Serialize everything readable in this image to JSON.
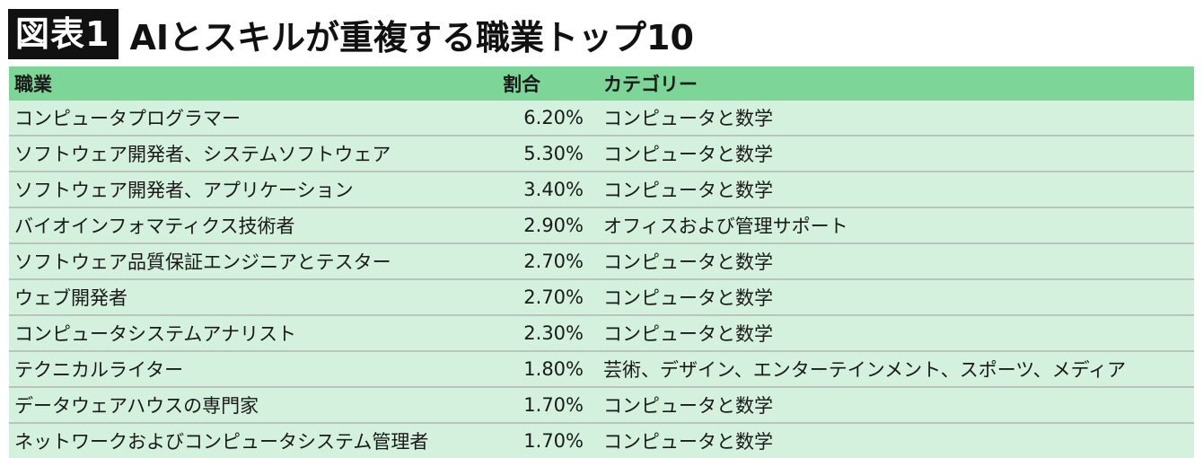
{
  "header": {
    "badge": "図表1",
    "title": "AIとスキルが重複する職業トップ10"
  },
  "table": {
    "columns": [
      "職業",
      "割合",
      "カテゴリー"
    ],
    "rows": [
      {
        "job": "コンピュータプログラマー",
        "ratio": "6.20%",
        "category": "コンピュータと数学"
      },
      {
        "job": "ソフトウェア開発者、システムソフトウェア",
        "ratio": "5.30%",
        "category": "コンピュータと数学"
      },
      {
        "job": "ソフトウェア開発者、アプリケーション",
        "ratio": "3.40%",
        "category": "コンピュータと数学"
      },
      {
        "job": "バイオインフォマティクス技術者",
        "ratio": "2.90%",
        "category": "オフィスおよび管理サポート"
      },
      {
        "job": "ソフトウェア品質保証エンジニアとテスター",
        "ratio": "2.70%",
        "category": "コンピュータと数学"
      },
      {
        "job": "ウェブ開発者",
        "ratio": "2.70%",
        "category": "コンピュータと数学"
      },
      {
        "job": "コンピュータシステムアナリスト",
        "ratio": "2.30%",
        "category": "コンピュータと数学"
      },
      {
        "job": "テクニカルライター",
        "ratio": "1.80%",
        "category": "芸術、デザイン、エンターテインメント、スポーツ、メディア"
      },
      {
        "job": "データウェアハウスの専門家",
        "ratio": "1.70%",
        "category": "コンピュータと数学"
      },
      {
        "job": "ネットワークおよびコンピュータシステム管理者",
        "ratio": "1.70%",
        "category": "コンピュータと数学"
      }
    ]
  },
  "colors": {
    "header_bg": "#7dd597",
    "row_bg": "#d3f1dc",
    "badge_bg": "#111111"
  }
}
